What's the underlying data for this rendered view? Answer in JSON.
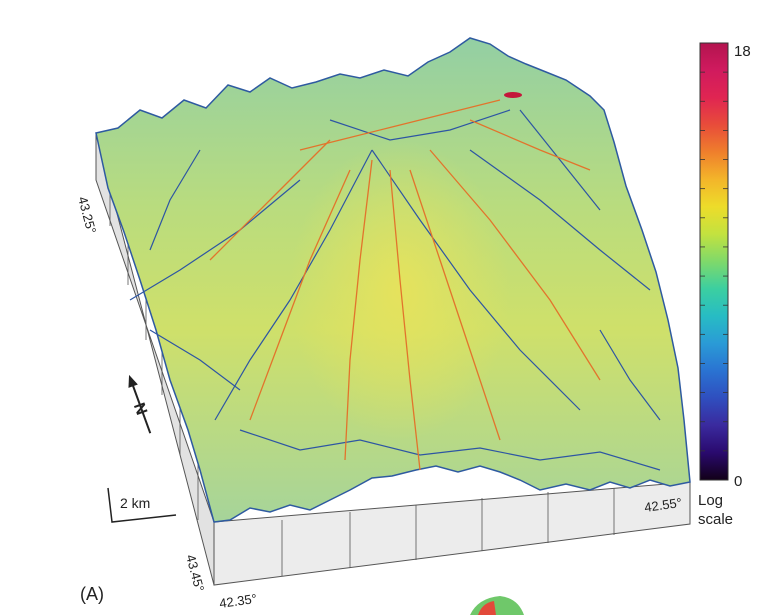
{
  "panel_label": "(A)",
  "colorbar": {
    "max_label": "18",
    "min_label": "0",
    "scale_label_line1": "Log",
    "scale_label_line2": "scale",
    "max_value": 18,
    "min_value": 0,
    "colors": [
      "#120018",
      "#2a0a6e",
      "#3a2a9e",
      "#2f4fbf",
      "#2a73d2",
      "#2a9bd6",
      "#27bcc4",
      "#3ccfa0",
      "#7fd96a",
      "#c3e23f",
      "#eddc2a",
      "#f3b52a",
      "#ef7f2c",
      "#e84c3a",
      "#e02552",
      "#d01a5e",
      "#b3144f"
    ]
  },
  "coordinates": {
    "lat_top": "43.25°",
    "lat_bottom": "43.45°",
    "lon_left": "42.35°",
    "lon_right": "42.55°"
  },
  "scale_bar": {
    "label": "2 km"
  },
  "north_arrow": {
    "label": "N"
  }
}
